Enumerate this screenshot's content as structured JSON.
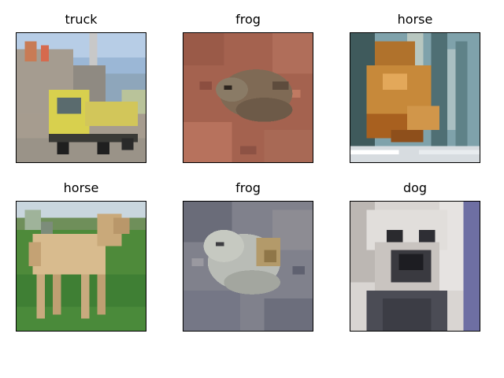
{
  "panels": [
    {
      "title": "truck",
      "subject": "yellow truck parked in front of a building"
    },
    {
      "title": "frog",
      "subject": "brown frog on reddish ground"
    },
    {
      "title": "horse",
      "subject": "orange blurred animal on striped background"
    },
    {
      "title": "horse",
      "subject": "tan horse standing on green grass"
    },
    {
      "title": "frog",
      "subject": "pale frog on gray gravel"
    },
    {
      "title": "dog",
      "subject": "close-up of a white dog face"
    }
  ]
}
